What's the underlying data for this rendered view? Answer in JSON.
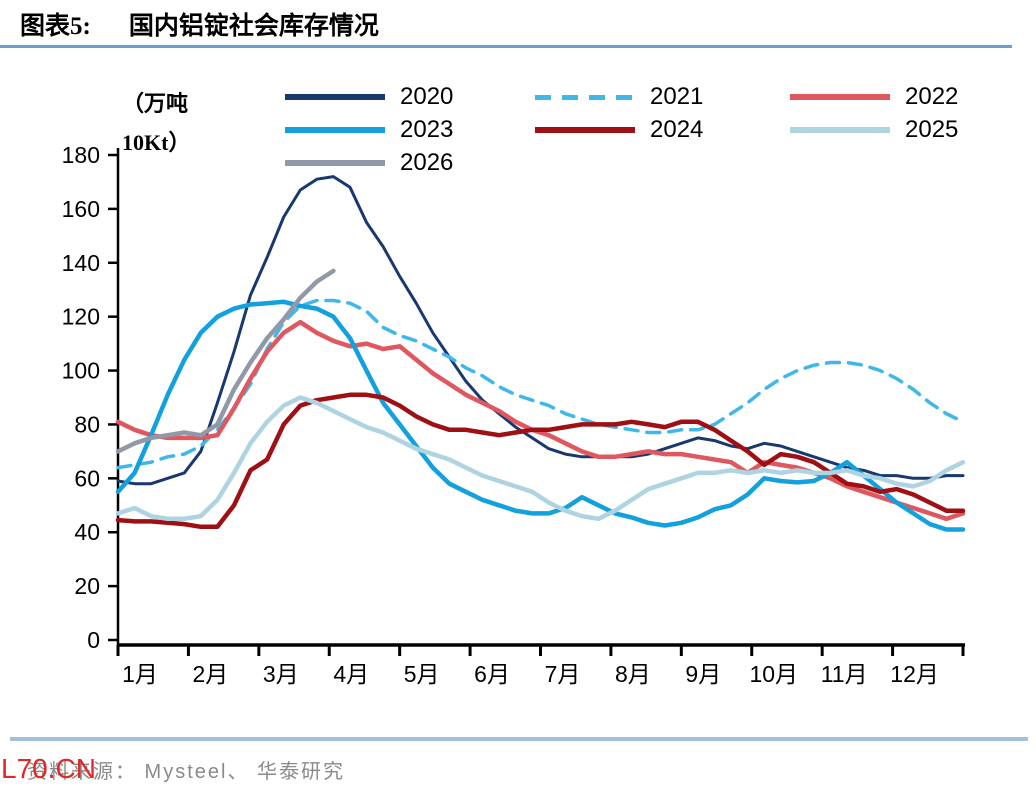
{
  "title": {
    "prefix": "图表5:",
    "text": "国内铝锭社会库存情况"
  },
  "unit_label": {
    "line1": "（万吨",
    "line2": "10Kt）"
  },
  "source": {
    "text": "资料来源： Mysteel、 华泰研究"
  },
  "watermark": "L70.CN",
  "colors": {
    "title_underline": "#6e9dcf",
    "footer_rule": "#a3c0da",
    "source_text": "#8a8a8a",
    "watermark": "#e32726",
    "axis": "#000000"
  },
  "chart_data": {
    "type": "line",
    "title": "国内铝锭社会库存情况",
    "ylabel": "（万吨 10Kt）",
    "ylim": [
      0,
      180
    ],
    "y_tick_step": 20,
    "grid": false,
    "legend_position": "top",
    "x_axis_labels": [
      "1月",
      "2月",
      "3月",
      "4月",
      "5月",
      "6月",
      "7月",
      "8月",
      "9月",
      "10月",
      "11月",
      "12月"
    ],
    "weeks_per_year": 52,
    "series": [
      {
        "name": "2020",
        "color": "#18386f",
        "style": "solid",
        "width": 3,
        "values": [
          59,
          58,
          58,
          60,
          62,
          70,
          88,
          107,
          128,
          142,
          157,
          167,
          171,
          172,
          168,
          155,
          146,
          135,
          125,
          114,
          105,
          96,
          89,
          84,
          79,
          75,
          71,
          69,
          68,
          68,
          68,
          68,
          69,
          71,
          73,
          75,
          74,
          72,
          71,
          73,
          72,
          70,
          68,
          66,
          64,
          63,
          61,
          61,
          60,
          60,
          61,
          61
        ]
      },
      {
        "name": "2021",
        "color": "#3fb7ea",
        "style": "dashed",
        "width": 3.5,
        "values": [
          64,
          65,
          66,
          68,
          69,
          72,
          78,
          86,
          95,
          108,
          118,
          124,
          126,
          126,
          125,
          122,
          116,
          113,
          111,
          108,
          105,
          101,
          98,
          94,
          91,
          89,
          87,
          84,
          82,
          80,
          79,
          78,
          77,
          77,
          78,
          78,
          80,
          84,
          88,
          93,
          97,
          100,
          102,
          103,
          103,
          102,
          100,
          97,
          93,
          88,
          84,
          81
        ]
      },
      {
        "name": "2022",
        "color": "#e0585f",
        "style": "solid",
        "width": 4.5,
        "values": [
          81,
          78,
          76,
          75,
          75,
          75,
          76,
          86,
          97,
          107,
          114,
          118,
          114,
          111,
          109,
          110,
          108,
          109,
          104,
          99,
          95,
          91,
          88,
          85,
          81,
          78,
          76,
          73,
          70,
          68,
          68,
          69,
          70,
          69,
          69,
          68,
          67,
          66,
          62,
          66,
          65,
          64,
          62,
          60,
          57,
          55,
          53,
          51,
          49,
          47,
          45,
          47
        ]
      },
      {
        "name": "2023",
        "color": "#12a1dd",
        "style": "solid",
        "width": 4.5,
        "values": [
          55,
          62,
          76,
          91,
          104,
          114,
          120,
          123,
          124.5,
          125,
          125.5,
          124,
          123,
          120,
          112,
          100,
          88,
          80,
          72,
          64,
          58,
          55,
          52,
          50,
          48,
          47,
          47,
          49,
          53,
          50,
          47,
          45.5,
          43.5,
          42.5,
          43.5,
          45.5,
          48.5,
          50,
          54,
          60,
          59,
          58.5,
          59,
          62,
          66,
          61,
          56,
          51,
          47,
          43,
          41,
          41
        ]
      },
      {
        "name": "2024",
        "color": "#9e1014",
        "style": "solid",
        "width": 4.5,
        "values": [
          44.5,
          44,
          44,
          43.5,
          43,
          42,
          42,
          50,
          63,
          67,
          80,
          87,
          89,
          90,
          91,
          91,
          90,
          87,
          83,
          80,
          78,
          78,
          77,
          76,
          77,
          78,
          78,
          79,
          80,
          80,
          80,
          81,
          80,
          79,
          81,
          81,
          78,
          74,
          70,
          65,
          69,
          68,
          66,
          62,
          58,
          57,
          55,
          56,
          54,
          51,
          48,
          48
        ]
      },
      {
        "name": "2025",
        "color": "#aed3e1",
        "style": "solid",
        "width": 4.5,
        "values": [
          47,
          49,
          46,
          45,
          45,
          46,
          52,
          62,
          73,
          81,
          87,
          90,
          88,
          85,
          82,
          79,
          77,
          74,
          71,
          69,
          67,
          64,
          61,
          59,
          57,
          55,
          51,
          48,
          46,
          45,
          48,
          52,
          56,
          58,
          60,
          62,
          62,
          63,
          62,
          63,
          62,
          63,
          62,
          62,
          63,
          61,
          60,
          58,
          57,
          59,
          63,
          66
        ]
      },
      {
        "name": "2026",
        "color": "#9199a9",
        "style": "solid",
        "width": 4.5,
        "partial": true,
        "values": [
          70,
          73,
          75,
          76,
          77,
          76,
          80,
          93,
          103,
          112,
          119,
          127,
          133,
          137
        ]
      }
    ]
  }
}
